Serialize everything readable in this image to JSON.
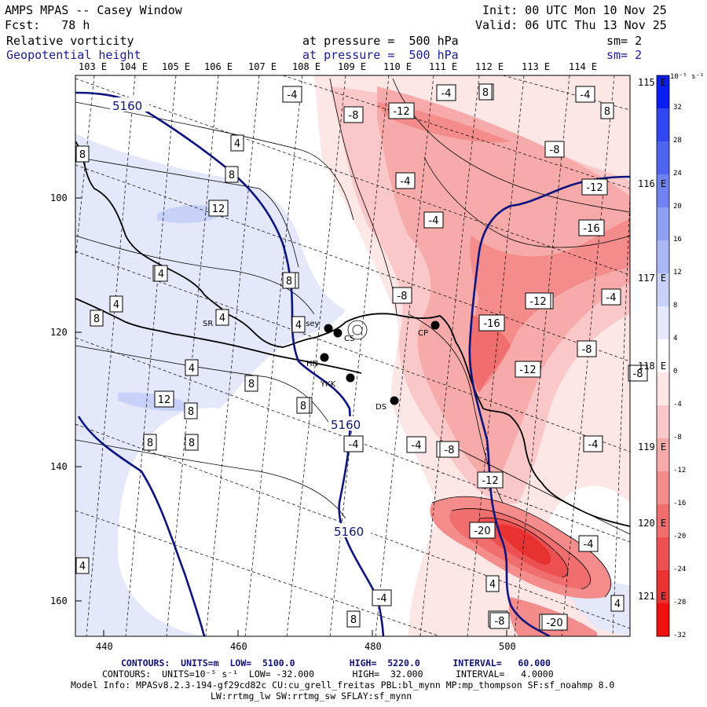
{
  "header": {
    "title": "AMPS MPAS -- Casey Window",
    "init": "Init: 00 UTC Mon 10 Nov 25",
    "forecast": "Fcst:   78 h",
    "valid": "Valid: 06 UTC Thu 13 Nov 25",
    "fields": [
      {
        "name": "Relative vorticity",
        "level": "at pressure =  500 hPa",
        "smooth": "sm= 2"
      },
      {
        "name": "Geopotential height",
        "level": "at pressure =  500 hPa",
        "smooth": "sm= 2"
      }
    ]
  },
  "map": {
    "top_lon_labels": [
      "103 E",
      "104 E",
      "105 E",
      "106 E",
      "107 E",
      "108 E",
      "109 E",
      "110 E",
      "111 E",
      "112 E",
      "113 E",
      "114 E"
    ],
    "right_lon_labels": [
      "115 E",
      "116 E",
      "117 E",
      "118 E",
      "119 E",
      "120 E",
      "121 E"
    ],
    "x_ticks": [
      "440",
      "460",
      "480",
      "500"
    ],
    "y_ticks": [
      "100",
      "120",
      "140",
      "160"
    ],
    "stations": [
      "SR",
      "CS",
      "HN",
      "YKK",
      "DS",
      "CP"
    ],
    "casey_label": "Casey",
    "height_contours": [
      "5160",
      "5160",
      "5160"
    ],
    "vort_labels": [
      "-4",
      "-4",
      "4",
      "4",
      "-8",
      "-12",
      "8",
      "8",
      "-8",
      "4",
      "8",
      "-4",
      "-12",
      "12",
      "-4",
      "-16",
      "4",
      "-4",
      "-8",
      "8",
      "4",
      "-12",
      "-16",
      "4",
      "8",
      "4",
      "-8",
      "-12",
      "-8",
      "8",
      "12",
      "8",
      "-4",
      "-8",
      "-4",
      "-12",
      "-20",
      "-4",
      "4",
      "-4",
      "-8",
      "-20",
      "8",
      "8",
      "4",
      "-4",
      "4",
      "8",
      "8",
      "4",
      "8",
      "-12",
      "-4",
      "-8",
      "8",
      "4",
      "4",
      "4",
      "-4",
      "8",
      "-4",
      "-20",
      "-8"
    ]
  },
  "colorbar": {
    "units": "10⁻⁵ s⁻¹",
    "ticks": [
      "32",
      "28",
      "24",
      "20",
      "16",
      "12",
      "8",
      "4",
      "0",
      "-4",
      "-8",
      "-12",
      "-16",
      "-20",
      "-24",
      "-28",
      "-32"
    ],
    "colors": [
      "#0a1ef0",
      "#3246f0",
      "#5064f0",
      "#6e82f2",
      "#8ca0f4",
      "#aab8f6",
      "#c8d2f8",
      "#e4e8fa",
      "#ffffff",
      "#fce6e6",
      "#fac8c8",
      "#f7aaaa",
      "#f48c8c",
      "#f06e6e",
      "#ec5050",
      "#e83232",
      "#f01010"
    ]
  },
  "footer": {
    "height_contours": "CONTOURS:  UNITS=m  LOW=  5100.0          HIGH=  5220.0      INTERVAL=   60.000",
    "vort_contours": "CONTOURS:  UNITS=10⁻⁵ s⁻¹  LOW= -32.000       HIGH=  32.000      INTERVAL=   4.0000",
    "model_info": "Model Info: MPASv8.2.3-194-gf29cd82c CU:cu_grell_freitas PBL:bl_mynn MP:mp_thompson SF:sf_noahmp 8.0",
    "model_info2": "LW:rrtmg_lw SW:rrtmg_sw SFLAY:sf_mynn"
  }
}
